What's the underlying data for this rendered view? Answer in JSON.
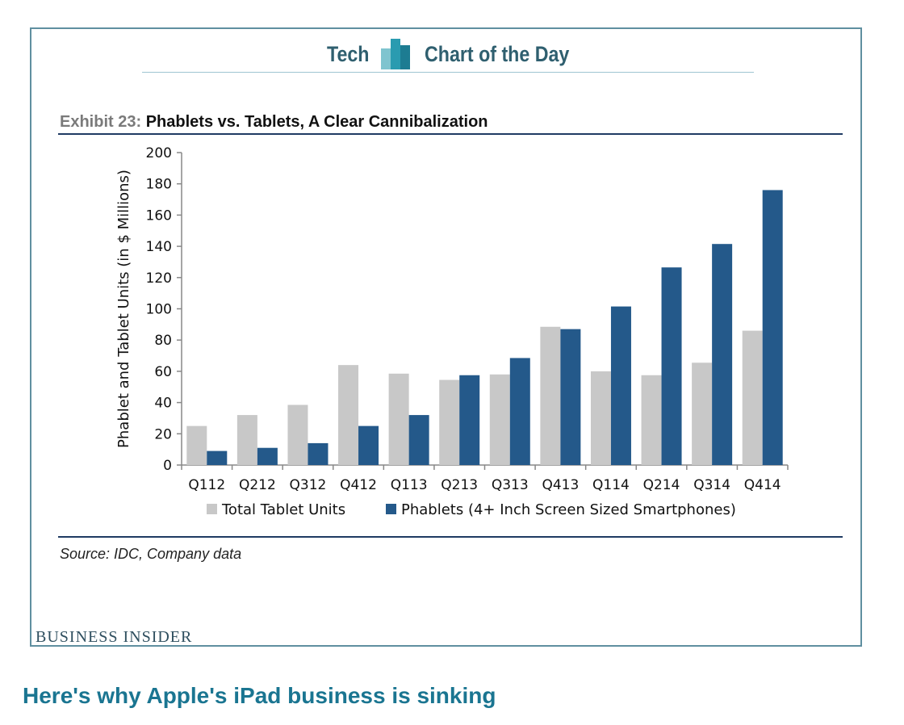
{
  "banner": {
    "left_text": "Tech",
    "right_text": "Chart of the Day",
    "logo_icon": "bar-columns-icon"
  },
  "exhibit": {
    "number": "Exhibit 23:",
    "title": "Phablets vs. Tablets, A Clear Cannibalization"
  },
  "source": "Source: IDC, Company data",
  "brand": "BUSINESS INSIDER",
  "headline": "Here's why Apple's iPad business is sinking",
  "colors": {
    "frame": "#5f8fa0",
    "tablet": "#c8c8c8",
    "phablet": "#24598a",
    "rule": "#1f3b63",
    "headline": "#1a7591"
  },
  "chart_data": {
    "type": "bar",
    "ylabel": "Phablet and Tablet Units (in $ Millions)",
    "xlabel": "",
    "ylim": [
      0,
      200
    ],
    "yticks": [
      0,
      20,
      40,
      60,
      80,
      100,
      120,
      140,
      160,
      180,
      200
    ],
    "grid": false,
    "legend_position": "bottom",
    "categories": [
      "Q112",
      "Q212",
      "Q312",
      "Q412",
      "Q113",
      "Q213",
      "Q313",
      "Q413",
      "Q114",
      "Q214",
      "Q314",
      "Q414"
    ],
    "series": [
      {
        "name": "Total Tablet Units",
        "color": "#c8c8c8",
        "values": [
          25,
          32,
          38.5,
          64,
          58.5,
          54.5,
          58,
          88.5,
          60,
          57.5,
          65.5,
          86
        ]
      },
      {
        "name": "Phablets (4+ Inch Screen Sized Smartphones)",
        "color": "#24598a",
        "values": [
          9,
          11,
          14,
          25,
          32,
          57.5,
          68.5,
          87,
          101.5,
          126.5,
          141.5,
          176
        ]
      }
    ]
  }
}
